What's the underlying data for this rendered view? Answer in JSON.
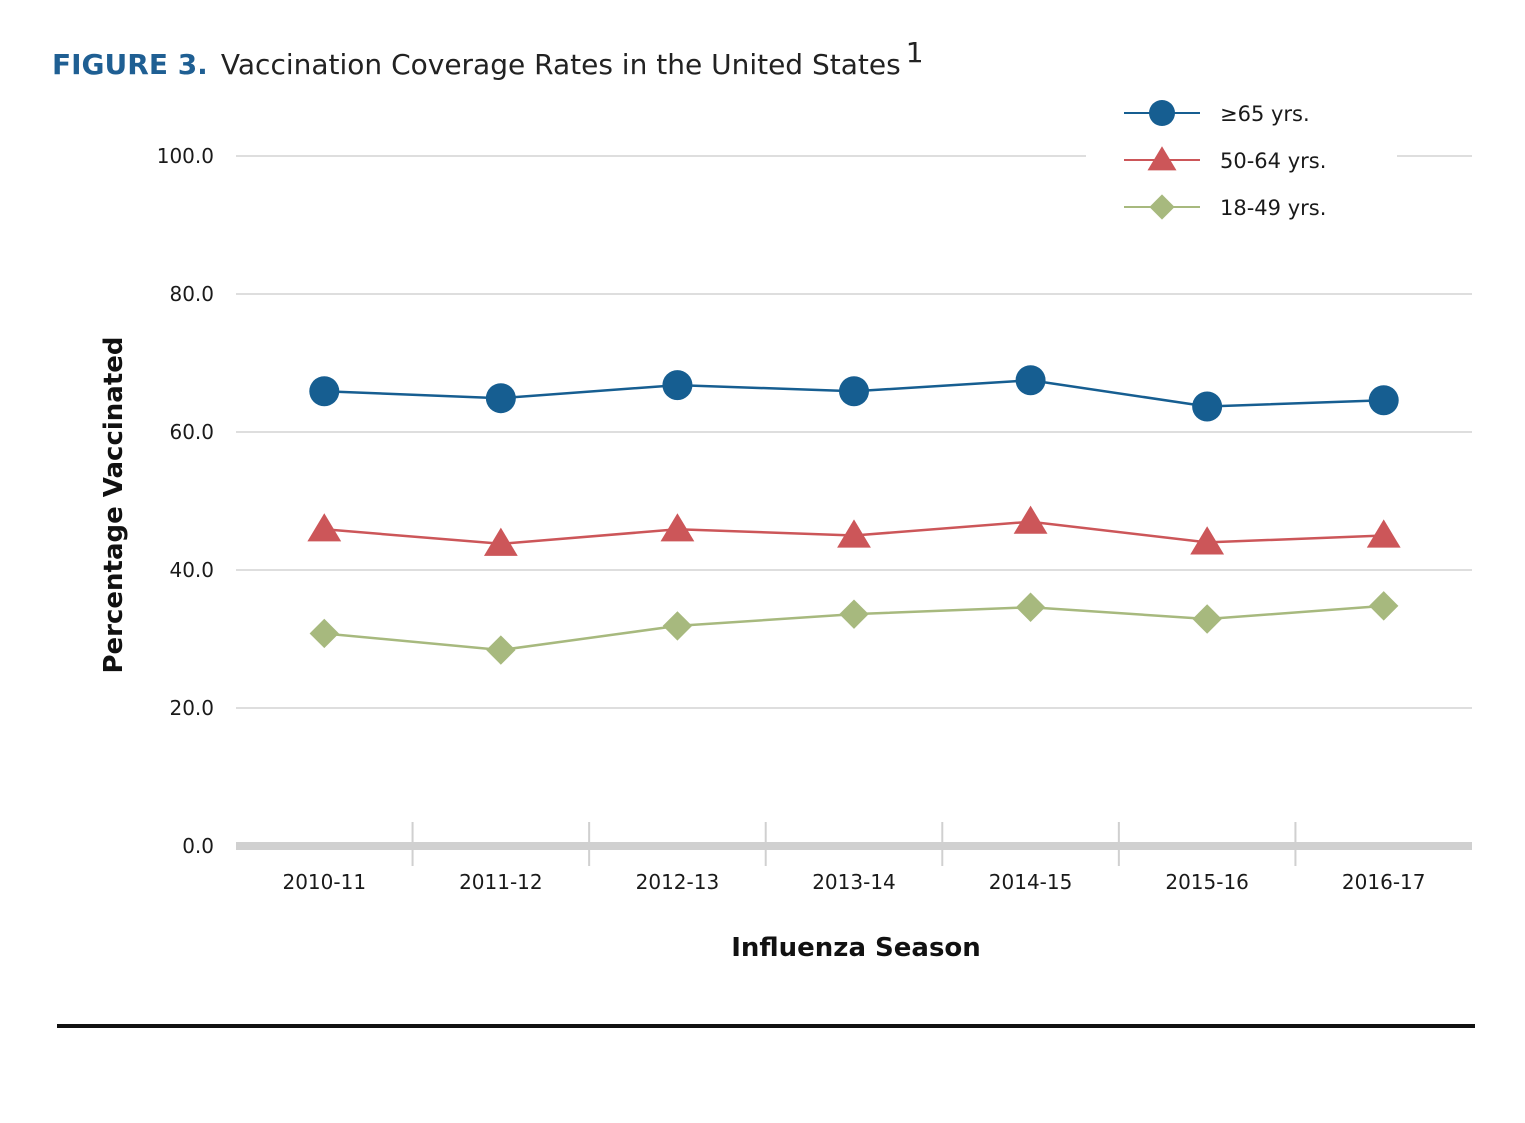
{
  "figure": {
    "label": "FIGURE 3.",
    "title": "Vaccination Coverage Rates in the United States",
    "footnote": "1"
  },
  "colors": {
    "title_label": "#1f5f93",
    "grid": "#d4d4d4",
    "baseline": "#d0d0d0",
    "rule": "#111111"
  },
  "chart_data": {
    "type": "line",
    "title": "Vaccination Coverage Rates in the United States",
    "xlabel": "Influenza Season",
    "ylabel": "Percentage Vaccinated",
    "ylim": [
      0,
      100
    ],
    "yticks": [
      0,
      20,
      40,
      60,
      80,
      100
    ],
    "ytick_labels": [
      "0.0",
      "20.0",
      "40.0",
      "60.0",
      "80.0",
      "100.0"
    ],
    "grid": true,
    "legend_position": "top-right",
    "categories": [
      "2010-11",
      "2011-12",
      "2012-13",
      "2013-14",
      "2014-15",
      "2015-16",
      "2016-17"
    ],
    "series": [
      {
        "name": "≥65 yrs.",
        "marker": "circle",
        "color": "#165e91",
        "values": [
          65.9,
          64.9,
          66.8,
          65.9,
          67.5,
          63.7,
          64.6
        ]
      },
      {
        "name": "50-64 yrs.",
        "marker": "triangle",
        "color": "#cc5659",
        "values": [
          45.9,
          43.8,
          45.9,
          45.0,
          47.0,
          44.0,
          45.0
        ]
      },
      {
        "name": "18-49 yrs.",
        "marker": "diamond",
        "color": "#a7b97e",
        "values": [
          30.8,
          28.4,
          31.9,
          33.6,
          34.6,
          32.9,
          34.8
        ]
      }
    ]
  }
}
